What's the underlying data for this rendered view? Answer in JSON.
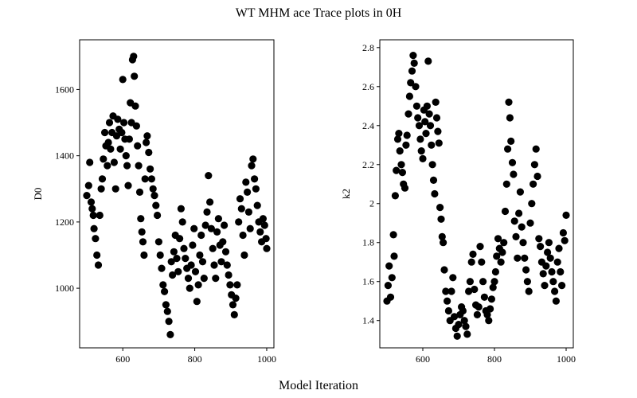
{
  "figure": {
    "suptitle": "WT MHM ace Trace plots in 0H",
    "supxlabel": "Model Iteration",
    "marker_color": "#000000"
  },
  "chart_data": [
    {
      "type": "scatter",
      "ylabel": "D0",
      "xlabel": "",
      "xlim": [
        480,
        1020
      ],
      "ylim": [
        820,
        1750
      ],
      "xticks": [
        600,
        800,
        1000
      ],
      "yticks": [
        1000,
        1200,
        1400,
        1600
      ],
      "points": [
        [
          500,
          1280
        ],
        [
          505,
          1310
        ],
        [
          508,
          1380
        ],
        [
          512,
          1260
        ],
        [
          515,
          1240
        ],
        [
          518,
          1220
        ],
        [
          520,
          1180
        ],
        [
          524,
          1150
        ],
        [
          528,
          1100
        ],
        [
          532,
          1070
        ],
        [
          536,
          1220
        ],
        [
          540,
          1300
        ],
        [
          543,
          1330
        ],
        [
          546,
          1390
        ],
        [
          550,
          1470
        ],
        [
          553,
          1430
        ],
        [
          557,
          1370
        ],
        [
          560,
          1440
        ],
        [
          563,
          1500
        ],
        [
          566,
          1420
        ],
        [
          570,
          1470
        ],
        [
          573,
          1520
        ],
        [
          576,
          1380
        ],
        [
          580,
          1300
        ],
        [
          583,
          1460
        ],
        [
          586,
          1510
        ],
        [
          590,
          1480
        ],
        [
          593,
          1420
        ],
        [
          597,
          1470
        ],
        [
          600,
          1630
        ],
        [
          603,
          1500
        ],
        [
          606,
          1450
        ],
        [
          609,
          1400
        ],
        [
          612,
          1370
        ],
        [
          615,
          1310
        ],
        [
          618,
          1450
        ],
        [
          621,
          1560
        ],
        [
          624,
          1500
        ],
        [
          627,
          1690
        ],
        [
          630,
          1700
        ],
        [
          632,
          1640
        ],
        [
          635,
          1550
        ],
        [
          638,
          1490
        ],
        [
          641,
          1430
        ],
        [
          644,
          1370
        ],
        [
          647,
          1290
        ],
        [
          650,
          1210
        ],
        [
          653,
          1170
        ],
        [
          656,
          1140
        ],
        [
          659,
          1100
        ],
        [
          662,
          1330
        ],
        [
          665,
          1440
        ],
        [
          668,
          1460
        ],
        [
          672,
          1410
        ],
        [
          676,
          1360
        ],
        [
          680,
          1330
        ],
        [
          684,
          1300
        ],
        [
          688,
          1280
        ],
        [
          692,
          1250
        ],
        [
          696,
          1220
        ],
        [
          700,
          1140
        ],
        [
          704,
          1100
        ],
        [
          708,
          1060
        ],
        [
          712,
          1010
        ],
        [
          716,
          990
        ],
        [
          720,
          950
        ],
        [
          724,
          930
        ],
        [
          728,
          900
        ],
        [
          732,
          860
        ],
        [
          735,
          1080
        ],
        [
          738,
          1040
        ],
        [
          742,
          1110
        ],
        [
          746,
          1160
        ],
        [
          750,
          1090
        ],
        [
          754,
          1050
        ],
        [
          758,
          1150
        ],
        [
          762,
          1240
        ],
        [
          766,
          1200
        ],
        [
          770,
          1120
        ],
        [
          774,
          1090
        ],
        [
          778,
          1060
        ],
        [
          782,
          1030
        ],
        [
          786,
          1000
        ],
        [
          790,
          1070
        ],
        [
          794,
          1130
        ],
        [
          798,
          1180
        ],
        [
          802,
          1050
        ],
        [
          806,
          960
        ],
        [
          810,
          1010
        ],
        [
          814,
          1100
        ],
        [
          818,
          1160
        ],
        [
          822,
          1080
        ],
        [
          826,
          1030
        ],
        [
          830,
          1190
        ],
        [
          834,
          1230
        ],
        [
          838,
          1340
        ],
        [
          842,
          1260
        ],
        [
          846,
          1180
        ],
        [
          850,
          1120
        ],
        [
          854,
          1070
        ],
        [
          858,
          1030
        ],
        [
          862,
          1170
        ],
        [
          866,
          1210
        ],
        [
          870,
          1130
        ],
        [
          874,
          1080
        ],
        [
          878,
          1140
        ],
        [
          882,
          1190
        ],
        [
          886,
          1110
        ],
        [
          890,
          1070
        ],
        [
          894,
          1040
        ],
        [
          898,
          1010
        ],
        [
          902,
          980
        ],
        [
          906,
          950
        ],
        [
          910,
          920
        ],
        [
          914,
          970
        ],
        [
          918,
          1010
        ],
        [
          922,
          1200
        ],
        [
          926,
          1270
        ],
        [
          930,
          1240
        ],
        [
          934,
          1160
        ],
        [
          938,
          1100
        ],
        [
          942,
          1320
        ],
        [
          946,
          1290
        ],
        [
          950,
          1230
        ],
        [
          954,
          1180
        ],
        [
          958,
          1370
        ],
        [
          962,
          1390
        ],
        [
          966,
          1330
        ],
        [
          970,
          1300
        ],
        [
          974,
          1250
        ],
        [
          978,
          1200
        ],
        [
          982,
          1170
        ],
        [
          986,
          1140
        ],
        [
          990,
          1210
        ],
        [
          994,
          1190
        ],
        [
          998,
          1150
        ],
        [
          1000,
          1120
        ]
      ]
    },
    {
      "type": "scatter",
      "ylabel": "k2",
      "xlabel": "",
      "xlim": [
        480,
        1020
      ],
      "ylim": [
        1.26,
        2.84
      ],
      "xticks": [
        600,
        800,
        1000
      ],
      "yticks": [
        1.4,
        1.6,
        1.8,
        2.0,
        2.2,
        2.4,
        2.6,
        2.8
      ],
      "points": [
        [
          500,
          1.5
        ],
        [
          503,
          1.58
        ],
        [
          506,
          1.68
        ],
        [
          510,
          1.52
        ],
        [
          514,
          1.62
        ],
        [
          518,
          1.84
        ],
        [
          520,
          1.73
        ],
        [
          523,
          2.04
        ],
        [
          526,
          2.17
        ],
        [
          530,
          2.33
        ],
        [
          533,
          2.36
        ],
        [
          536,
          2.27
        ],
        [
          540,
          2.2
        ],
        [
          543,
          2.16
        ],
        [
          546,
          2.1
        ],
        [
          550,
          2.08
        ],
        [
          553,
          2.3
        ],
        [
          556,
          2.35
        ],
        [
          560,
          2.46
        ],
        [
          563,
          2.55
        ],
        [
          566,
          2.62
        ],
        [
          570,
          2.68
        ],
        [
          573,
          2.76
        ],
        [
          576,
          2.72
        ],
        [
          580,
          2.6
        ],
        [
          583,
          2.5
        ],
        [
          586,
          2.44
        ],
        [
          590,
          2.4
        ],
        [
          593,
          2.33
        ],
        [
          596,
          2.27
        ],
        [
          600,
          2.23
        ],
        [
          603,
          2.48
        ],
        [
          606,
          2.42
        ],
        [
          609,
          2.36
        ],
        [
          612,
          2.5
        ],
        [
          615,
          2.73
        ],
        [
          618,
          2.46
        ],
        [
          621,
          2.4
        ],
        [
          624,
          2.3
        ],
        [
          627,
          2.2
        ],
        [
          630,
          2.12
        ],
        [
          633,
          2.05
        ],
        [
          636,
          2.52
        ],
        [
          639,
          2.44
        ],
        [
          642,
          2.37
        ],
        [
          645,
          2.31
        ],
        [
          648,
          1.98
        ],
        [
          651,
          1.92
        ],
        [
          654,
          1.83
        ],
        [
          657,
          1.8
        ],
        [
          660,
          1.66
        ],
        [
          664,
          1.55
        ],
        [
          668,
          1.5
        ],
        [
          672,
          1.45
        ],
        [
          676,
          1.4
        ],
        [
          680,
          1.55
        ],
        [
          684,
          1.62
        ],
        [
          688,
          1.42
        ],
        [
          692,
          1.36
        ],
        [
          696,
          1.32
        ],
        [
          700,
          1.38
        ],
        [
          704,
          1.43
        ],
        [
          708,
          1.47
        ],
        [
          712,
          1.45
        ],
        [
          716,
          1.4
        ],
        [
          720,
          1.37
        ],
        [
          724,
          1.33
        ],
        [
          728,
          1.55
        ],
        [
          732,
          1.6
        ],
        [
          736,
          1.7
        ],
        [
          740,
          1.74
        ],
        [
          744,
          1.56
        ],
        [
          748,
          1.48
        ],
        [
          752,
          1.43
        ],
        [
          756,
          1.47
        ],
        [
          760,
          1.78
        ],
        [
          764,
          1.7
        ],
        [
          768,
          1.6
        ],
        [
          772,
          1.52
        ],
        [
          776,
          1.45
        ],
        [
          780,
          1.43
        ],
        [
          784,
          1.4
        ],
        [
          788,
          1.46
        ],
        [
          792,
          1.51
        ],
        [
          796,
          1.57
        ],
        [
          800,
          1.6
        ],
        [
          803,
          1.65
        ],
        [
          806,
          1.73
        ],
        [
          810,
          1.82
        ],
        [
          814,
          1.77
        ],
        [
          818,
          1.7
        ],
        [
          822,
          1.75
        ],
        [
          826,
          1.8
        ],
        [
          830,
          1.96
        ],
        [
          834,
          2.1
        ],
        [
          837,
          2.28
        ],
        [
          840,
          2.52
        ],
        [
          843,
          2.44
        ],
        [
          846,
          2.32
        ],
        [
          850,
          2.21
        ],
        [
          853,
          2.15
        ],
        [
          856,
          1.91
        ],
        [
          860,
          1.83
        ],
        [
          864,
          1.72
        ],
        [
          868,
          1.95
        ],
        [
          872,
          2.06
        ],
        [
          876,
          1.88
        ],
        [
          880,
          1.8
        ],
        [
          884,
          1.72
        ],
        [
          888,
          1.66
        ],
        [
          892,
          1.6
        ],
        [
          896,
          1.55
        ],
        [
          900,
          1.9
        ],
        [
          904,
          2.0
        ],
        [
          908,
          2.1
        ],
        [
          912,
          2.2
        ],
        [
          916,
          2.28
        ],
        [
          920,
          2.14
        ],
        [
          924,
          1.82
        ],
        [
          928,
          1.78
        ],
        [
          932,
          1.7
        ],
        [
          936,
          1.64
        ],
        [
          940,
          1.58
        ],
        [
          944,
          1.68
        ],
        [
          948,
          1.75
        ],
        [
          952,
          1.8
        ],
        [
          956,
          1.72
        ],
        [
          960,
          1.65
        ],
        [
          964,
          1.6
        ],
        [
          968,
          1.55
        ],
        [
          972,
          1.5
        ],
        [
          976,
          1.7
        ],
        [
          980,
          1.77
        ],
        [
          984,
          1.65
        ],
        [
          988,
          1.58
        ],
        [
          992,
          1.85
        ],
        [
          996,
          1.81
        ],
        [
          1000,
          1.94
        ]
      ]
    }
  ]
}
